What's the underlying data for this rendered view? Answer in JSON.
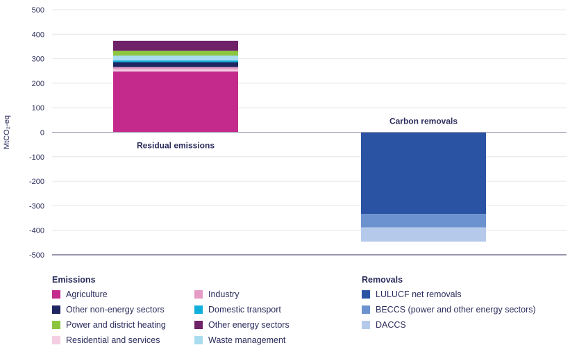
{
  "chart_data": {
    "type": "bar",
    "stacked": true,
    "ylabel": "MtCO₂-eq",
    "ylim": [
      -500,
      500
    ],
    "yticks": [
      500,
      400,
      300,
      200,
      100,
      0,
      -100,
      -200,
      -300,
      -400,
      -500
    ],
    "grid": true,
    "categories": [
      "Residual emissions",
      "Carbon removals"
    ],
    "legend_groups": [
      {
        "title": "Emissions",
        "series": [
          {
            "name": "Agriculture",
            "color": "#c32a8c",
            "category": "Residual emissions",
            "value": 248
          },
          {
            "name": "Residential and services",
            "color": "#f4cfe3",
            "category": "Residual emissions",
            "value": 8
          },
          {
            "name": "Industry",
            "color": "#e59bc6",
            "category": "Residual emissions",
            "value": 10
          },
          {
            "name": "Other non-energy sectors",
            "color": "#1f2560",
            "category": "Residual emissions",
            "value": 20
          },
          {
            "name": "Domestic transport",
            "color": "#11b0dc",
            "category": "Residual emissions",
            "value": 7
          },
          {
            "name": "Waste management",
            "color": "#a9dcef",
            "category": "Residual emissions",
            "value": 20
          },
          {
            "name": "Power and district heating",
            "color": "#8cc53f",
            "category": "Residual emissions",
            "value": 20
          },
          {
            "name": "Other energy sectors",
            "color": "#6e2268",
            "category": "Residual emissions",
            "value": 40
          }
        ]
      },
      {
        "title": "Removals",
        "series": [
          {
            "name": "LULUCF net removals",
            "color": "#2b53a4",
            "category": "Carbon removals",
            "value": -333
          },
          {
            "name": "BECCS (power and other energy sectors)",
            "color": "#6c93cf",
            "category": "Carbon removals",
            "value": -55
          },
          {
            "name": "DACCS",
            "color": "#b5c9ea",
            "category": "Carbon removals",
            "value": -58
          }
        ]
      }
    ]
  }
}
